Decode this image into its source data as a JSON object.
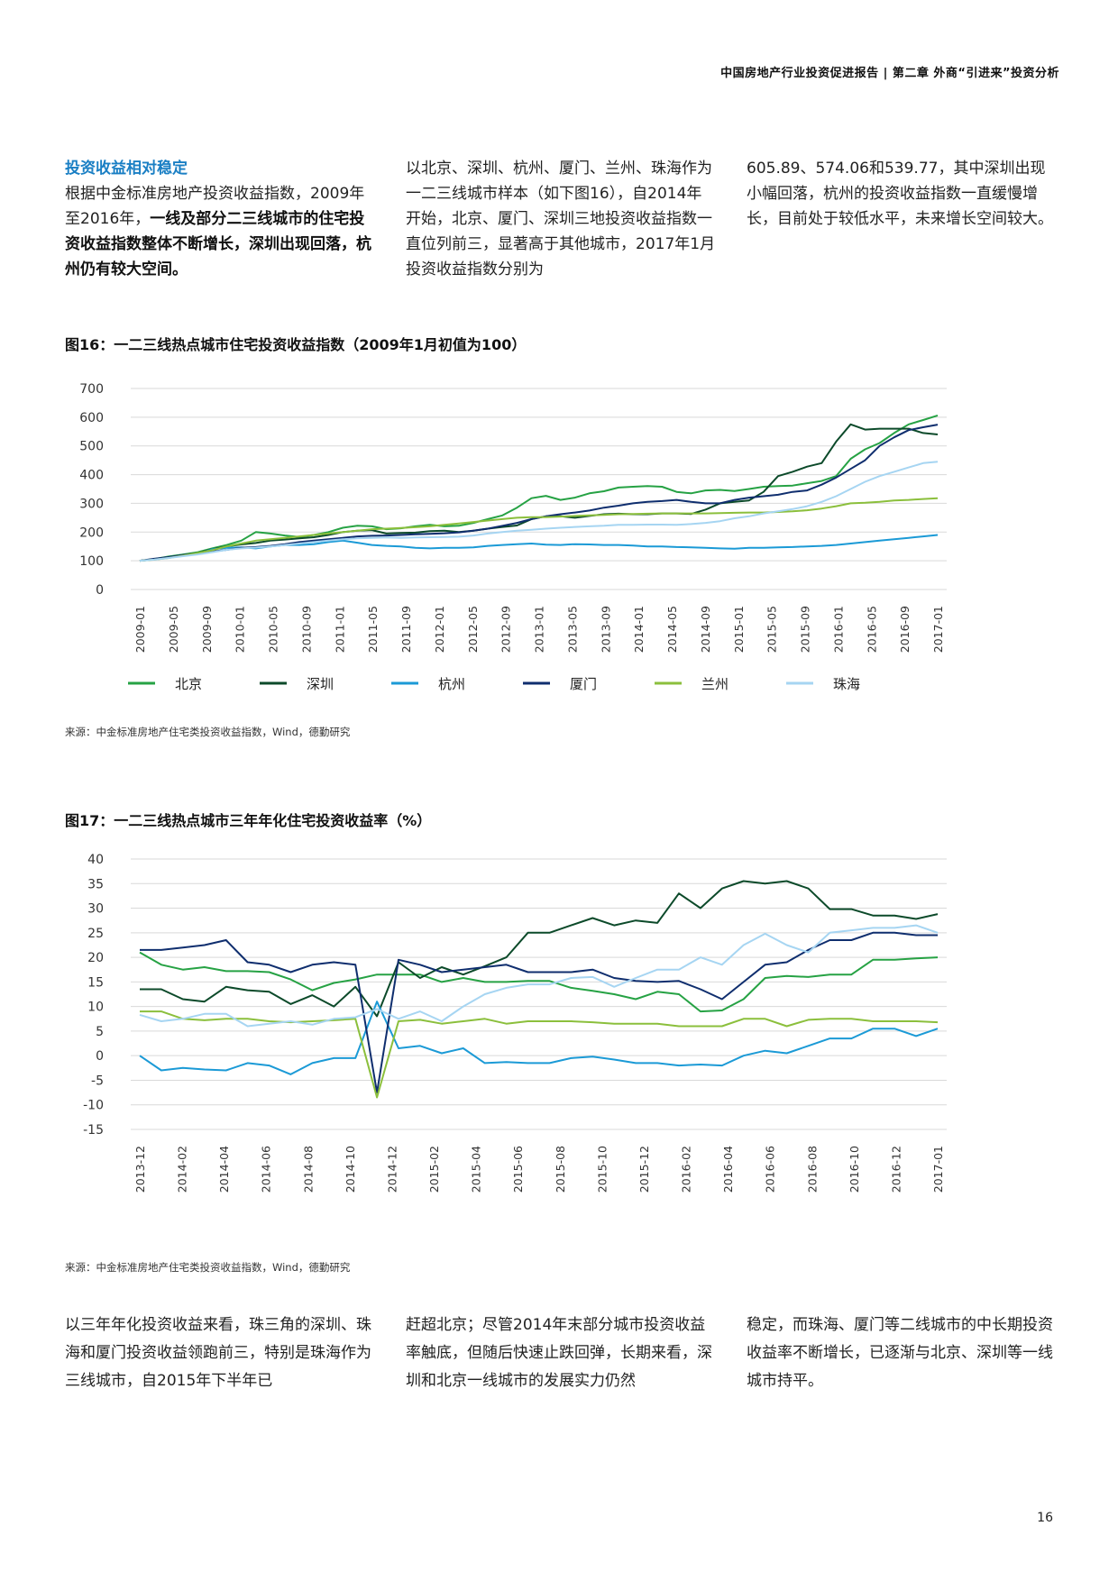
{
  "header": {
    "text": "中国房地产行业投资促进报告 | 第二章 外商“引进来”投资分析"
  },
  "intro": {
    "col1": {
      "title": "投资收益相对稳定",
      "normal": "根据中金标准房地产投资收益指数，2009年至2016年，",
      "bold": "一线及部分二三线城市的住宅投资收益指数整体不断增长，深圳出现回落，杭州仍有较大空间。"
    },
    "col2": "以北京、深圳、杭州、厦门、兰州、珠海作为一二三线城市样本（如下图16），自2014年开始，北京、厦门、深圳三地投资收益指数一直位列前三，显著高于其他城市，2017年1月投资收益指数分别为",
    "col3": "605.89、574.06和539.77，其中深圳出现小幅回落，杭州的投资收益指数一直缓慢增长，目前处于较低水平，未来增长空间较大。"
  },
  "fig16": {
    "title": "图16：一二三线热点城市住宅投资收益指数（2009年1月初值为100）",
    "source": "来源：中金标准房地产住宅类投资收益指数，Wind，德勤研究"
  },
  "fig17": {
    "title": "图17：一二三线热点城市三年年化住宅投资收益率（%）",
    "source": "来源：中金标准房地产住宅类投资收益指数，Wind，德勤研究"
  },
  "bottom": {
    "col1": "以三年年化投资收益来看，珠三角的深圳、珠海和厦门投资收益领跑前三，特别是珠海作为三线城市，自2015年下半年已",
    "col2": "赶超北京；尽管2014年末部分城市投资收益率触底，但随后快速止跌回弹，长期来看，深圳和北京一线城市的发展实力仍然",
    "col3": "稳定，而珠海、厦门等二线城市的中长期投资收益率不断增长，已逐渐与北京、深圳等一线城市持平。"
  },
  "page_number": "16",
  "chart_data": [
    {
      "id": "fig16",
      "type": "line",
      "title": "图16：一二三线热点城市住宅投资收益指数（2009年1月初值为100）",
      "ylim": [
        0,
        700
      ],
      "yticks": [
        0,
        100,
        200,
        300,
        400,
        500,
        600,
        700
      ],
      "x_tick_labels": [
        "2009-01",
        "2009-05",
        "2009-09",
        "2010-01",
        "2010-05",
        "2010-09",
        "2011-01",
        "2011-05",
        "2011-09",
        "2012-01",
        "2012-05",
        "2012-09",
        "2013-01",
        "2013-05",
        "2013-09",
        "2014-01",
        "2014-05",
        "2014-09",
        "2015-01",
        "2015-05",
        "2015-09",
        "2016-01",
        "2016-05",
        "2016-09",
        "2017-01"
      ],
      "legend_position": "bottom",
      "series": [
        {
          "name": "北京",
          "color": "#26a244",
          "values": [
            100,
            106,
            115,
            122,
            130,
            143,
            155,
            170,
            200,
            195,
            188,
            183,
            190,
            200,
            215,
            222,
            220,
            210,
            213,
            220,
            225,
            220,
            222,
            232,
            245,
            258,
            285,
            318,
            326,
            312,
            320,
            335,
            342,
            355,
            358,
            360,
            358,
            340,
            335,
            345,
            347,
            343,
            350,
            358,
            360,
            362,
            370,
            378,
            395,
            455,
            488,
            510,
            545,
            575,
            590,
            606
          ]
        },
        {
          "name": "深圳",
          "color": "#0c4a2a",
          "values": [
            100,
            105,
            112,
            120,
            127,
            140,
            150,
            157,
            162,
            170,
            174,
            178,
            182,
            190,
            200,
            205,
            207,
            195,
            197,
            198,
            203,
            205,
            200,
            205,
            212,
            218,
            223,
            245,
            255,
            255,
            250,
            256,
            262,
            264,
            262,
            262,
            265,
            265,
            263,
            278,
            300,
            305,
            310,
            340,
            395,
            410,
            428,
            440,
            515,
            575,
            557,
            560,
            560,
            560,
            545,
            540
          ]
        },
        {
          "name": "杭州",
          "color": "#1b9ad6",
          "values": [
            100,
            105,
            112,
            118,
            124,
            140,
            145,
            147,
            143,
            150,
            155,
            155,
            158,
            165,
            170,
            163,
            155,
            152,
            150,
            145,
            143,
            145,
            145,
            147,
            152,
            155,
            158,
            160,
            156,
            155,
            158,
            157,
            155,
            155,
            153,
            150,
            150,
            148,
            147,
            145,
            143,
            142,
            145,
            145,
            147,
            148,
            150,
            152,
            155,
            160,
            165,
            170,
            175,
            180,
            185,
            190
          ]
        },
        {
          "name": "厦门",
          "color": "#0f2e6e",
          "values": [
            100,
            107,
            113,
            120,
            126,
            132,
            138,
            145,
            148,
            152,
            158,
            165,
            170,
            175,
            180,
            185,
            187,
            188,
            190,
            192,
            194,
            196,
            199,
            205,
            212,
            222,
            232,
            245,
            255,
            262,
            268,
            275,
            285,
            292,
            300,
            305,
            308,
            312,
            305,
            300,
            300,
            312,
            320,
            325,
            330,
            340,
            345,
            365,
            390,
            420,
            450,
            500,
            530,
            555,
            565,
            574
          ]
        },
        {
          "name": "兰州",
          "color": "#8bbf3c",
          "values": [
            100,
            104,
            110,
            118,
            127,
            137,
            150,
            160,
            170,
            175,
            180,
            185,
            190,
            195,
            200,
            205,
            210,
            212,
            214,
            217,
            220,
            225,
            230,
            235,
            240,
            245,
            250,
            252,
            252,
            254,
            256,
            258,
            260,
            262,
            263,
            264,
            265,
            265,
            265,
            265,
            266,
            267,
            268,
            268,
            270,
            272,
            276,
            282,
            290,
            300,
            302,
            305,
            310,
            312,
            315,
            318
          ]
        },
        {
          "name": "珠海",
          "color": "#a6d5f2",
          "values": [
            100,
            104,
            110,
            116,
            122,
            130,
            138,
            143,
            146,
            150,
            155,
            160,
            165,
            170,
            175,
            178,
            180,
            181,
            180,
            181,
            182,
            183,
            184,
            188,
            195,
            200,
            205,
            208,
            212,
            215,
            218,
            220,
            222,
            225,
            225,
            226,
            226,
            225,
            228,
            232,
            238,
            248,
            255,
            265,
            272,
            280,
            290,
            305,
            325,
            350,
            375,
            395,
            410,
            425,
            440,
            445
          ]
        }
      ]
    },
    {
      "id": "fig17",
      "type": "line",
      "title": "图17：一二三线热点城市三年年化住宅投资收益率（%）",
      "ylim": [
        -15,
        40
      ],
      "yticks": [
        -15,
        -10,
        -5,
        0,
        5,
        10,
        15,
        20,
        25,
        30,
        35,
        40
      ],
      "x_tick_labels": [
        "2013-12",
        "2014-02",
        "2014-04",
        "2014-06",
        "2014-08",
        "2014-10",
        "2014-12",
        "2015-02",
        "2015-04",
        "2015-06",
        "2015-08",
        "2015-10",
        "2015-12",
        "2016-02",
        "2016-04",
        "2016-06",
        "2016-08",
        "2016-10",
        "2016-12",
        "2017-01"
      ],
      "series": [
        {
          "name": "北京",
          "color": "#26a244",
          "values": [
            21,
            18.5,
            17.5,
            18,
            17.2,
            17.2,
            17,
            15.5,
            13.3,
            14.8,
            15.5,
            16.5,
            16.5,
            16.5,
            15,
            15.8,
            15,
            15,
            15.2,
            15.2,
            13.8,
            13.2,
            12.5,
            11.5,
            13,
            12.5,
            9,
            9.2,
            11.5,
            15.8,
            16.2,
            16,
            16.5,
            16.5,
            19.5,
            19.5,
            19.8,
            20
          ]
        },
        {
          "name": "深圳",
          "color": "#0c4a2a",
          "values": [
            13.5,
            13.5,
            11.5,
            11,
            14,
            13.3,
            13,
            10.5,
            12.3,
            10,
            14,
            8,
            19,
            15.8,
            18,
            16.5,
            18.2,
            20,
            25,
            25,
            26.5,
            28,
            26.5,
            27.5,
            27,
            33,
            30,
            34,
            35.5,
            35,
            35.5,
            34,
            29.8,
            29.8,
            28.5,
            28.5,
            27.8,
            28.8
          ]
        },
        {
          "name": "杭州",
          "color": "#1b9ad6",
          "values": [
            0,
            -3,
            -2.5,
            -2.8,
            -3,
            -1.5,
            -2,
            -3.8,
            -1.5,
            -0.5,
            -0.5,
            11,
            1.5,
            2,
            0.5,
            1.5,
            -1.5,
            -1.3,
            -1.5,
            -1.5,
            -0.5,
            -0.2,
            -0.8,
            -1.5,
            -1.5,
            -2,
            -1.8,
            -2,
            0,
            1,
            0.5,
            2,
            3.5,
            3.5,
            5.5,
            5.5,
            4,
            5.5
          ]
        },
        {
          "name": "厦门",
          "color": "#0f2e6e",
          "values": [
            21.5,
            21.5,
            22,
            22.5,
            23.5,
            19,
            18.5,
            17,
            18.5,
            19,
            18.5,
            -7.5,
            19.5,
            18.5,
            17,
            17.5,
            18,
            18.5,
            17,
            17,
            17,
            17.5,
            15.8,
            15.2,
            15,
            15.2,
            13.5,
            11.5,
            15,
            18.5,
            19,
            21.5,
            23.5,
            23.5,
            25,
            25,
            24.5,
            24.5
          ]
        },
        {
          "name": "兰州",
          "color": "#8bbf3c",
          "values": [
            9,
            9,
            7.5,
            7.2,
            7.5,
            7.5,
            7,
            6.8,
            7,
            7.2,
            7.5,
            -8.5,
            7,
            7.3,
            6.5,
            7,
            7.5,
            6.5,
            7,
            7,
            7,
            6.8,
            6.5,
            6.5,
            6.5,
            6,
            6,
            6,
            7.5,
            7.5,
            6,
            7.3,
            7.5,
            7.5,
            7,
            7,
            7,
            6.8
          ]
        },
        {
          "name": "珠海",
          "color": "#a6d5f2",
          "values": [
            8.3,
            7,
            7.5,
            8.5,
            8.5,
            6,
            6.5,
            7,
            6.3,
            7.5,
            7.8,
            9.5,
            7.5,
            9,
            7,
            10,
            12.5,
            13.8,
            14.5,
            14.5,
            15.8,
            16,
            14,
            15.8,
            17.5,
            17.5,
            20,
            18.5,
            22.5,
            24.8,
            22.5,
            21,
            25,
            25.5,
            26,
            26,
            26.5,
            25
          ]
        }
      ]
    }
  ]
}
